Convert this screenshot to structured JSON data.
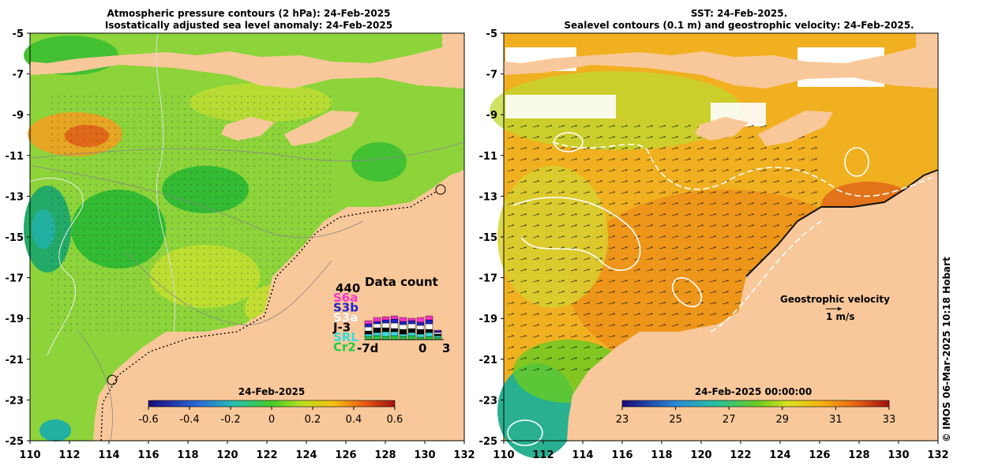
{
  "left_panel": {
    "title_line1": "Atmospheric pressure contours (2 hPa): 24-Feb-2025",
    "title_line2": "Isostatically adjusted sea level anomaly: 24-Feb-2025",
    "y_ticks": [
      "-5",
      "-7",
      "-9",
      "-11",
      "-13",
      "-15",
      "-17",
      "-19",
      "-21",
      "-23",
      "-25"
    ],
    "x_ticks": [
      "110",
      "112",
      "114",
      "116",
      "118",
      "120",
      "122",
      "124",
      "126",
      "128",
      "130",
      "132"
    ],
    "colorbar": {
      "date": "24-Feb-2025",
      "labels": [
        "-0.6",
        "-0.4",
        "-0.2",
        "0",
        "0.2",
        "0.4",
        "0.6"
      ]
    },
    "data_count": {
      "title": "Data count",
      "max": "440",
      "missions": [
        {
          "name": "S6a",
          "color": "#ff33cc"
        },
        {
          "name": "S3b",
          "color": "#2222cc"
        },
        {
          "name": "S3a",
          "color": "#ffffff"
        },
        {
          "name": "J-3",
          "color": "#000000"
        },
        {
          "name": "SRL",
          "color": "#33dddd"
        },
        {
          "name": "Cr2",
          "color": "#22cc44"
        }
      ],
      "x_labels": [
        "-7d",
        "0",
        "3"
      ]
    }
  },
  "right_panel": {
    "title_line1": "SST: 24-Feb-2025.",
    "title_line2": "Sealevel contours (0.1 m) and geostrophic velocity: 24-Feb-2025.",
    "y_ticks": [
      "-5",
      "-7",
      "-9",
      "-11",
      "-13",
      "-15",
      "-17",
      "-19",
      "-21",
      "-23",
      "-25"
    ],
    "x_ticks": [
      "110",
      "112",
      "114",
      "116",
      "118",
      "120",
      "122",
      "124",
      "126",
      "128",
      "130",
      "132"
    ],
    "colorbar": {
      "date": "24-Feb-2025 00:00:00",
      "labels": [
        "23",
        "25",
        "27",
        "29",
        "31",
        "33"
      ]
    },
    "legend": {
      "title": "Geostrophic velocity",
      "scale": "1 m/s"
    }
  },
  "credit": "© IMOS 06-Mar-2025 10:18 Hobart",
  "colors": {
    "land": "#f9c89a",
    "sla_green": "#66cc33",
    "sst_orange": "#f2a020"
  }
}
